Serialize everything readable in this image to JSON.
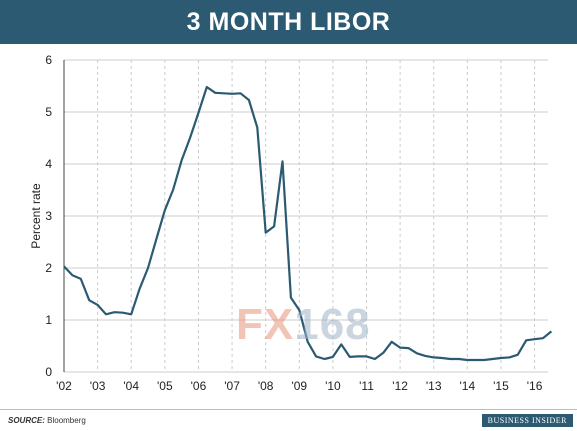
{
  "title": "3 MONTH LIBOR",
  "watermark": {
    "fx": "FX",
    "num": "168"
  },
  "footer": {
    "source_label": "SOURCE:",
    "source_value": "Bloomberg",
    "brand": "BUSINESS INSIDER"
  },
  "colors": {
    "header": "#2b5a72",
    "line": "#2b5a72",
    "grid": "#cccccc"
  },
  "chart_data": {
    "type": "line",
    "title": "3 MONTH LIBOR",
    "xlabel": "",
    "ylabel": "Percent rate",
    "xlim": [
      2002.0,
      2016.4
    ],
    "ylim": [
      0,
      6
    ],
    "x_ticks": [
      {
        "value": 2002,
        "label": "'02"
      },
      {
        "value": 2003,
        "label": "'03"
      },
      {
        "value": 2004,
        "label": "'04"
      },
      {
        "value": 2005,
        "label": "'05"
      },
      {
        "value": 2006,
        "label": "'06"
      },
      {
        "value": 2007,
        "label": "'07"
      },
      {
        "value": 2008,
        "label": "'08"
      },
      {
        "value": 2009,
        "label": "'09"
      },
      {
        "value": 2010,
        "label": "'10"
      },
      {
        "value": 2011,
        "label": "'11"
      },
      {
        "value": 2012,
        "label": "'12"
      },
      {
        "value": 2013,
        "label": "'13"
      },
      {
        "value": 2014,
        "label": "'14"
      },
      {
        "value": 2015,
        "label": "'15"
      },
      {
        "value": 2016,
        "label": "'16"
      }
    ],
    "y_ticks": [
      0,
      1,
      2,
      3,
      4,
      5,
      6
    ],
    "grid": true,
    "series": [
      {
        "name": "",
        "points": [
          [
            2002.0,
            2.03
          ],
          [
            2002.25,
            1.86
          ],
          [
            2002.5,
            1.79
          ],
          [
            2002.75,
            1.38
          ],
          [
            2003.0,
            1.29
          ],
          [
            2003.25,
            1.11
          ],
          [
            2003.5,
            1.15
          ],
          [
            2003.75,
            1.14
          ],
          [
            2004.0,
            1.11
          ],
          [
            2004.25,
            1.6
          ],
          [
            2004.5,
            2.0
          ],
          [
            2004.75,
            2.56
          ],
          [
            2005.0,
            3.11
          ],
          [
            2005.25,
            3.51
          ],
          [
            2005.5,
            4.07
          ],
          [
            2005.75,
            4.5
          ],
          [
            2006.0,
            4.98
          ],
          [
            2006.25,
            5.48
          ],
          [
            2006.5,
            5.37
          ],
          [
            2006.75,
            5.36
          ],
          [
            2007.0,
            5.35
          ],
          [
            2007.25,
            5.36
          ],
          [
            2007.5,
            5.23
          ],
          [
            2007.75,
            4.7
          ],
          [
            2008.0,
            2.68
          ],
          [
            2008.25,
            2.8
          ],
          [
            2008.5,
            4.05
          ],
          [
            2008.75,
            1.43
          ],
          [
            2009.0,
            1.19
          ],
          [
            2009.25,
            0.58
          ],
          [
            2009.5,
            0.3
          ],
          [
            2009.75,
            0.25
          ],
          [
            2010.0,
            0.29
          ],
          [
            2010.25,
            0.53
          ],
          [
            2010.5,
            0.29
          ],
          [
            2010.75,
            0.3
          ],
          [
            2011.0,
            0.3
          ],
          [
            2011.25,
            0.25
          ],
          [
            2011.5,
            0.37
          ],
          [
            2011.75,
            0.58
          ],
          [
            2012.0,
            0.47
          ],
          [
            2012.25,
            0.46
          ],
          [
            2012.5,
            0.36
          ],
          [
            2012.75,
            0.31
          ],
          [
            2013.0,
            0.28
          ],
          [
            2013.25,
            0.27
          ],
          [
            2013.5,
            0.25
          ],
          [
            2013.75,
            0.25
          ],
          [
            2014.0,
            0.23
          ],
          [
            2014.25,
            0.23
          ],
          [
            2014.5,
            0.23
          ],
          [
            2014.75,
            0.25
          ],
          [
            2015.0,
            0.27
          ],
          [
            2015.25,
            0.28
          ],
          [
            2015.5,
            0.33
          ],
          [
            2015.75,
            0.61
          ],
          [
            2016.0,
            0.63
          ],
          [
            2016.25,
            0.65
          ],
          [
            2016.5,
            0.78
          ]
        ]
      }
    ]
  }
}
